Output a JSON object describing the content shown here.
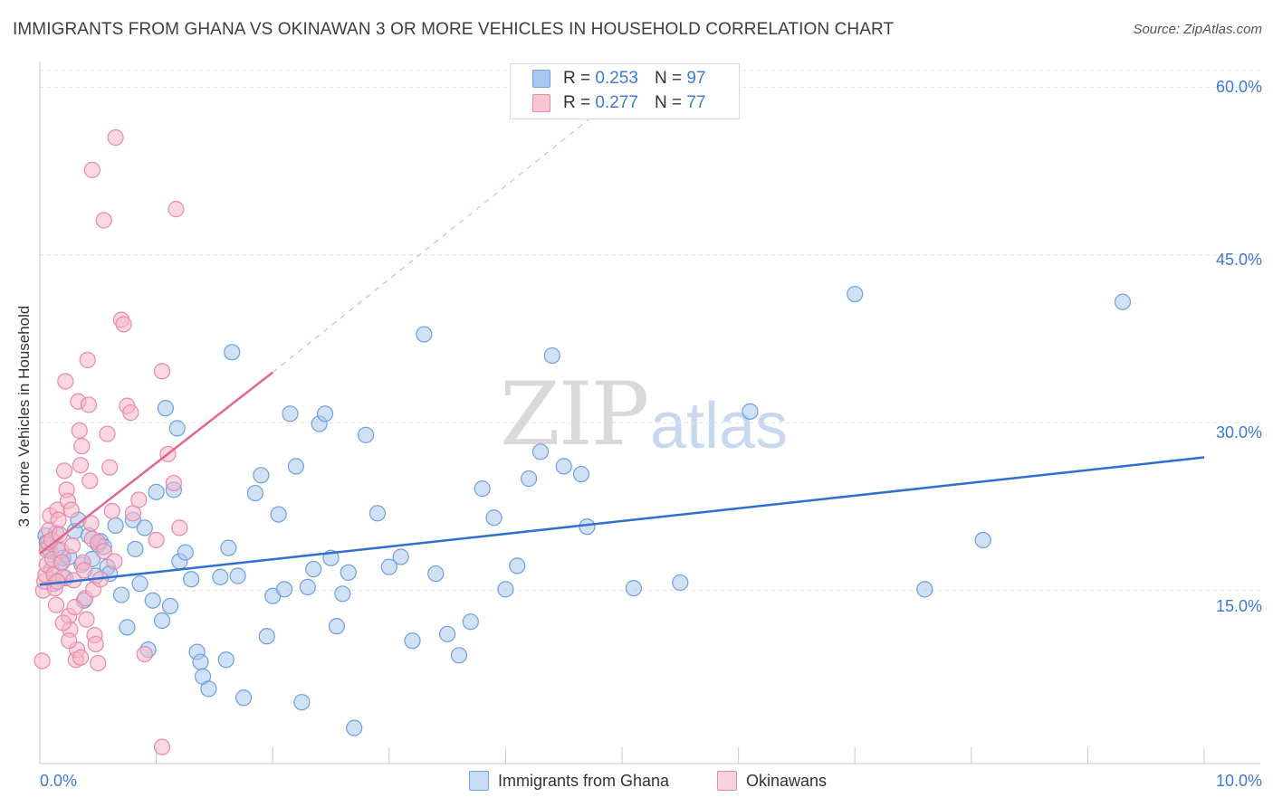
{
  "title": "IMMIGRANTS FROM GHANA VS OKINAWAN 3 OR MORE VEHICLES IN HOUSEHOLD CORRELATION CHART",
  "source": "Source: ZipAtlas.com",
  "watermark": {
    "zip": "ZIP",
    "atlas": "atlas"
  },
  "legend_top": [
    {
      "r_label": "R =",
      "r_value": "0.253",
      "n_label": "N =",
      "n_value": "97"
    },
    {
      "r_label": "R =",
      "r_value": "0.277",
      "n_label": "N =",
      "n_value": "77"
    }
  ],
  "legend_bottom": [
    "Immigrants from Ghana",
    "Okinawans"
  ],
  "colors": {
    "blue_fill": "#aac8ef",
    "blue_stroke": "#6f9fdc",
    "blue_line": "#2f6fcf",
    "pink_fill": "#f6b6c9",
    "pink_stroke": "#e889a8",
    "pink_line": "#e06690",
    "tick_text": "#3b7bd4",
    "grid": "#e2e2e2"
  },
  "chart_data": {
    "type": "scatter",
    "xlabel": "",
    "ylabel": "3 or more Vehicles in Household",
    "xlim": [
      0,
      10
    ],
    "ylim": [
      0,
      62
    ],
    "x_tick_labels": [
      "0.0%",
      "10.0%"
    ],
    "y_ticks": [
      15,
      30,
      45,
      60
    ],
    "y_tick_labels": [
      "15.0%",
      "30.0%",
      "45.0%",
      "60.0%"
    ],
    "grid": true,
    "legend_position": "top-center",
    "series": [
      {
        "name": "Immigrants from Ghana",
        "color": "#aac8ef",
        "r": 0.253,
        "n": 97,
        "trend": {
          "x": [
            0.0,
            10.0
          ],
          "y": [
            15.5,
            26.9
          ],
          "dashed_extension": false
        },
        "points": [
          [
            0.05,
            19.9
          ],
          [
            0.06,
            19.3
          ],
          [
            0.07,
            18.8
          ],
          [
            0.09,
            18.5
          ],
          [
            0.1,
            16.9
          ],
          [
            0.12,
            15.6
          ],
          [
            0.14,
            20.1
          ],
          [
            0.15,
            18.6
          ],
          [
            0.18,
            17.5
          ],
          [
            0.2,
            17.9
          ],
          [
            0.22,
            16.1
          ],
          [
            0.25,
            18.0
          ],
          [
            0.3,
            20.3
          ],
          [
            0.33,
            21.3
          ],
          [
            0.36,
            17.3
          ],
          [
            0.38,
            14.1
          ],
          [
            0.42,
            19.9
          ],
          [
            0.45,
            17.8
          ],
          [
            0.48,
            16.3
          ],
          [
            0.5,
            19.1
          ],
          [
            0.52,
            19.4
          ],
          [
            0.55,
            18.9
          ],
          [
            0.58,
            17.1
          ],
          [
            0.6,
            16.5
          ],
          [
            0.65,
            20.8
          ],
          [
            0.7,
            14.6
          ],
          [
            0.75,
            11.7
          ],
          [
            0.8,
            21.3
          ],
          [
            0.82,
            18.7
          ],
          [
            0.86,
            15.6
          ],
          [
            0.9,
            20.6
          ],
          [
            0.93,
            9.7
          ],
          [
            0.97,
            14.1
          ],
          [
            1.0,
            23.8
          ],
          [
            1.05,
            12.3
          ],
          [
            1.08,
            31.3
          ],
          [
            1.12,
            13.6
          ],
          [
            1.15,
            24.0
          ],
          [
            1.18,
            29.5
          ],
          [
            1.2,
            17.6
          ],
          [
            1.25,
            18.4
          ],
          [
            1.3,
            16.0
          ],
          [
            1.35,
            9.5
          ],
          [
            1.38,
            8.6
          ],
          [
            1.4,
            7.3
          ],
          [
            1.45,
            6.2
          ],
          [
            1.55,
            16.2
          ],
          [
            1.6,
            8.8
          ],
          [
            1.62,
            18.8
          ],
          [
            1.65,
            36.3
          ],
          [
            1.7,
            16.3
          ],
          [
            1.75,
            5.4
          ],
          [
            1.85,
            23.7
          ],
          [
            1.9,
            25.3
          ],
          [
            1.95,
            10.9
          ],
          [
            2.0,
            14.5
          ],
          [
            2.05,
            21.8
          ],
          [
            2.1,
            15.1
          ],
          [
            2.15,
            30.8
          ],
          [
            2.2,
            26.1
          ],
          [
            2.25,
            5.0
          ],
          [
            2.3,
            15.3
          ],
          [
            2.35,
            16.9
          ],
          [
            2.4,
            29.9
          ],
          [
            2.45,
            30.8
          ],
          [
            2.5,
            17.9
          ],
          [
            2.55,
            11.8
          ],
          [
            2.6,
            14.7
          ],
          [
            2.65,
            16.6
          ],
          [
            2.7,
            2.7
          ],
          [
            2.8,
            28.9
          ],
          [
            2.9,
            21.9
          ],
          [
            3.0,
            17.1
          ],
          [
            3.1,
            18.0
          ],
          [
            3.2,
            10.5
          ],
          [
            3.3,
            37.9
          ],
          [
            3.4,
            16.5
          ],
          [
            3.5,
            11.1
          ],
          [
            3.6,
            9.2
          ],
          [
            3.7,
            12.2
          ],
          [
            3.8,
            24.1
          ],
          [
            3.9,
            21.5
          ],
          [
            4.0,
            15.1
          ],
          [
            4.1,
            17.2
          ],
          [
            4.2,
            25.0
          ],
          [
            4.3,
            27.4
          ],
          [
            4.4,
            36.0
          ],
          [
            4.5,
            26.1
          ],
          [
            4.65,
            25.4
          ],
          [
            4.7,
            20.7
          ],
          [
            5.1,
            15.2
          ],
          [
            5.5,
            15.7
          ],
          [
            6.1,
            31.0
          ],
          [
            7.0,
            41.5
          ],
          [
            7.6,
            15.1
          ],
          [
            8.1,
            19.5
          ],
          [
            9.3,
            40.8
          ]
        ]
      },
      {
        "name": "Okinawans",
        "color": "#f6b6c9",
        "r": 0.277,
        "n": 77,
        "trend": {
          "x": [
            0.0,
            2.0
          ],
          "y": [
            18.3,
            34.5
          ],
          "dashed_extension_to": [
            5.0,
            59.5
          ]
        },
        "points": [
          [
            0.02,
            8.7
          ],
          [
            0.03,
            15.0
          ],
          [
            0.04,
            15.8
          ],
          [
            0.05,
            16.4
          ],
          [
            0.06,
            17.3
          ],
          [
            0.06,
            18.6
          ],
          [
            0.07,
            19.3
          ],
          [
            0.08,
            20.4
          ],
          [
            0.09,
            21.7
          ],
          [
            0.1,
            19.5
          ],
          [
            0.11,
            17.8
          ],
          [
            0.12,
            16.4
          ],
          [
            0.13,
            15.2
          ],
          [
            0.14,
            13.7
          ],
          [
            0.15,
            22.2
          ],
          [
            0.16,
            21.3
          ],
          [
            0.17,
            20.0
          ],
          [
            0.18,
            18.6
          ],
          [
            0.19,
            17.5
          ],
          [
            0.2,
            16.2
          ],
          [
            0.21,
            25.7
          ],
          [
            0.22,
            33.7
          ],
          [
            0.23,
            24.0
          ],
          [
            0.24,
            23.0
          ],
          [
            0.25,
            12.7
          ],
          [
            0.26,
            11.5
          ],
          [
            0.27,
            22.2
          ],
          [
            0.28,
            19.0
          ],
          [
            0.29,
            15.9
          ],
          [
            0.3,
            13.5
          ],
          [
            0.31,
            8.8
          ],
          [
            0.32,
            9.7
          ],
          [
            0.33,
            31.9
          ],
          [
            0.34,
            29.3
          ],
          [
            0.35,
            26.2
          ],
          [
            0.36,
            27.9
          ],
          [
            0.37,
            17.5
          ],
          [
            0.38,
            16.8
          ],
          [
            0.39,
            14.3
          ],
          [
            0.4,
            12.4
          ],
          [
            0.41,
            35.6
          ],
          [
            0.42,
            31.6
          ],
          [
            0.43,
            24.8
          ],
          [
            0.44,
            21.0
          ],
          [
            0.45,
            19.6
          ],
          [
            0.46,
            15.1
          ],
          [
            0.47,
            11.0
          ],
          [
            0.48,
            10.2
          ],
          [
            0.5,
            19.3
          ],
          [
            0.52,
            16.0
          ],
          [
            0.55,
            18.5
          ],
          [
            0.58,
            29.0
          ],
          [
            0.6,
            26.0
          ],
          [
            0.62,
            22.1
          ],
          [
            0.64,
            17.6
          ],
          [
            0.65,
            55.5
          ],
          [
            0.7,
            39.2
          ],
          [
            0.72,
            38.8
          ],
          [
            0.75,
            31.5
          ],
          [
            0.78,
            30.9
          ],
          [
            0.8,
            21.9
          ],
          [
            0.85,
            23.1
          ],
          [
            0.9,
            9.3
          ],
          [
            1.0,
            19.5
          ],
          [
            1.05,
            34.6
          ],
          [
            1.1,
            27.2
          ],
          [
            1.15,
            24.6
          ],
          [
            1.2,
            20.6
          ],
          [
            0.45,
            52.6
          ],
          [
            0.55,
            48.1
          ],
          [
            1.17,
            49.1
          ],
          [
            0.2,
            12.1
          ],
          [
            0.25,
            10.5
          ],
          [
            0.35,
            9.0
          ],
          [
            0.5,
            8.5
          ],
          [
            1.05,
            1.0
          ],
          [
            0.15,
            15.8
          ]
        ]
      }
    ]
  }
}
